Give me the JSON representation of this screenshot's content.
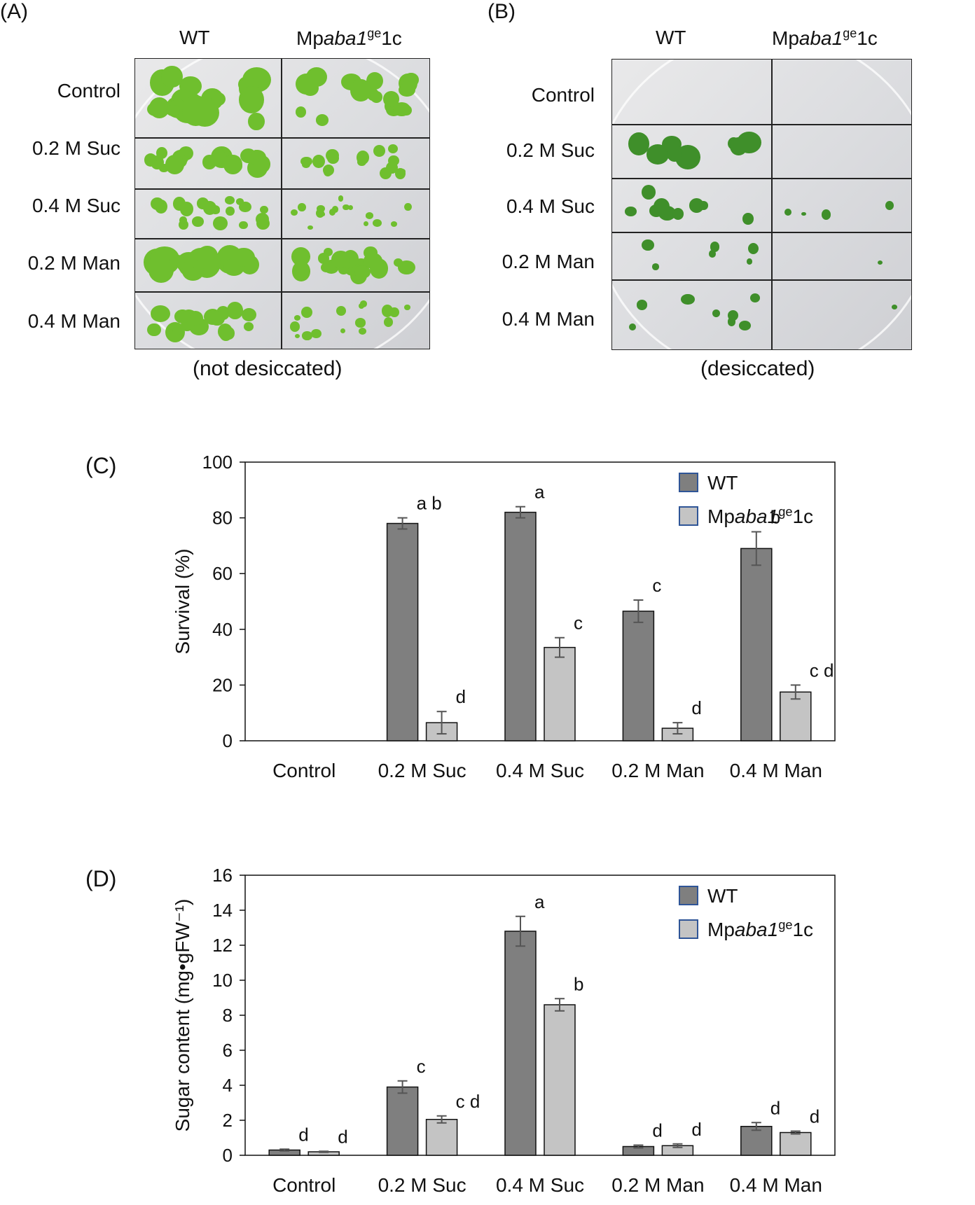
{
  "panel_a": {
    "label": "(A)",
    "col_headers": [
      "WT",
      "Mpaba1ge1c"
    ],
    "rows": [
      "Control",
      "0.2 M Suc",
      "0.4 M Suc",
      "0.2 M Man",
      "0.4 M Man"
    ],
    "caption": "(not desiccated)"
  },
  "panel_b": {
    "label": "(B)",
    "col_headers": [
      "WT",
      "Mpaba1ge1c"
    ],
    "rows": [
      "Control",
      "0.2 M Suc",
      "0.4 M Suc",
      "0.2 M Man",
      "0.4 M Man"
    ],
    "caption": "(desiccated)"
  },
  "colors": {
    "wt": "#7f7f7f",
    "mutant": "#c4c4c4",
    "plant": "#6fbf2e",
    "legend_border": "#2f5597"
  },
  "chart_data": [
    {
      "panel_label": "(C)",
      "type": "bar",
      "categories": [
        "Control",
        "0.2 M Suc",
        "0.4 M Suc",
        "0.2 M Man",
        "0.4 M Man"
      ],
      "ylabel": "Survival (%)",
      "ylim": [
        0,
        100
      ],
      "yticks": [
        0,
        20,
        40,
        60,
        80,
        100
      ],
      "legend_position": "top-right",
      "series": [
        {
          "name": "WT",
          "values": [
            0,
            78,
            82,
            46.5,
            69
          ],
          "errors": [
            0,
            2,
            2,
            4,
            6
          ],
          "letters": [
            "",
            "a b",
            "a",
            "c",
            "b"
          ]
        },
        {
          "name": "Mpaba1ge1c",
          "values": [
            0,
            6.5,
            33.5,
            4.5,
            17.5
          ],
          "errors": [
            0,
            4,
            3.5,
            2,
            2.5
          ],
          "letters": [
            "",
            "d",
            "c",
            "d",
            "c d"
          ]
        }
      ]
    },
    {
      "panel_label": "(D)",
      "type": "bar",
      "categories": [
        "Control",
        "0.2 M Suc",
        "0.4 M Suc",
        "0.2 M Man",
        "0.4 M Man"
      ],
      "ylabel": "Sugar content (mg•gFW⁻¹)",
      "ylim": [
        0,
        16
      ],
      "yticks": [
        0,
        2,
        4,
        6,
        8,
        10,
        12,
        14,
        16
      ],
      "legend_position": "top-right",
      "series": [
        {
          "name": "WT",
          "values": [
            0.3,
            3.9,
            12.8,
            0.5,
            1.65
          ],
          "errors": [
            0.05,
            0.35,
            0.85,
            0.08,
            0.22
          ],
          "letters": [
            "d",
            "c",
            "a",
            "d",
            "d"
          ]
        },
        {
          "name": "Mpaba1ge1c",
          "values": [
            0.2,
            2.05,
            8.6,
            0.55,
            1.3
          ],
          "errors": [
            0.03,
            0.2,
            0.35,
            0.1,
            0.08
          ],
          "letters": [
            "d",
            "c d",
            "b",
            "d",
            "d"
          ]
        }
      ]
    }
  ]
}
